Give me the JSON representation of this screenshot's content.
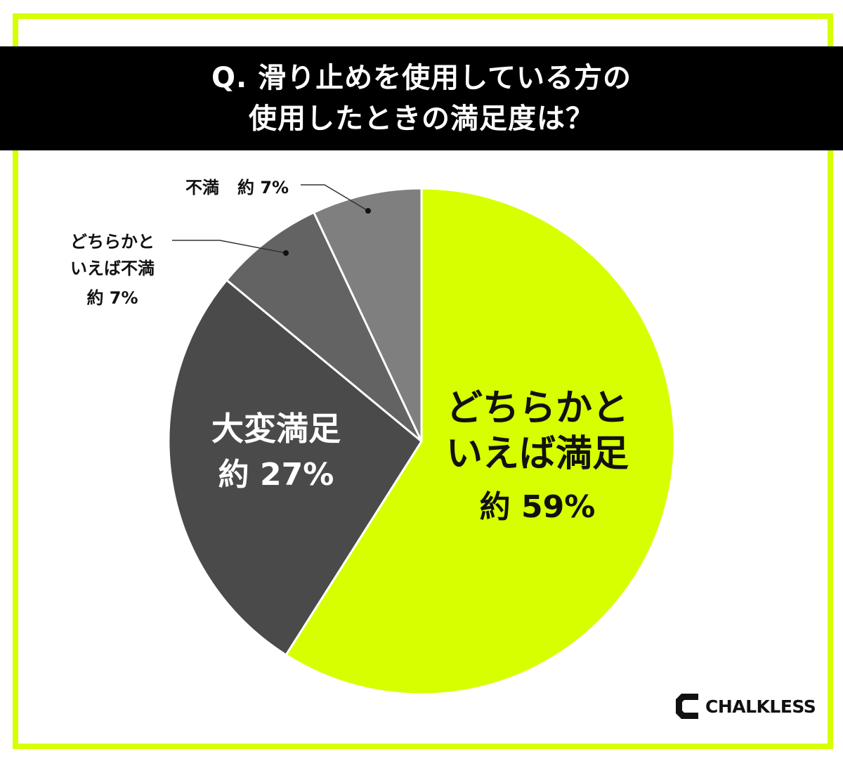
{
  "title": {
    "line1": "Q. 滑り止めを使用している方の",
    "line2": "使用したときの満足度は？"
  },
  "chart_data": {
    "type": "pie",
    "slices": [
      {
        "label_lines": [
          "どちらかと",
          "いえば満足"
        ],
        "value_text": "約 59%",
        "value": 59,
        "color": "#d7ff00"
      },
      {
        "label_lines": [
          "大変満足"
        ],
        "value_text": "約 27%",
        "value": 27,
        "color": "#4a4a4a"
      },
      {
        "label_lines": [
          "どちらかと",
          "いえば不満"
        ],
        "value_text": "約 7%",
        "value": 7,
        "color": "#636363"
      },
      {
        "label_lines": [
          "不満"
        ],
        "value_text": "約 7%",
        "value": 7,
        "color": "#7f7f7f"
      }
    ]
  },
  "logo": {
    "text": "CHALKLESS"
  },
  "colors": {
    "accent": "#d7ff00",
    "title_bg": "#000000"
  }
}
